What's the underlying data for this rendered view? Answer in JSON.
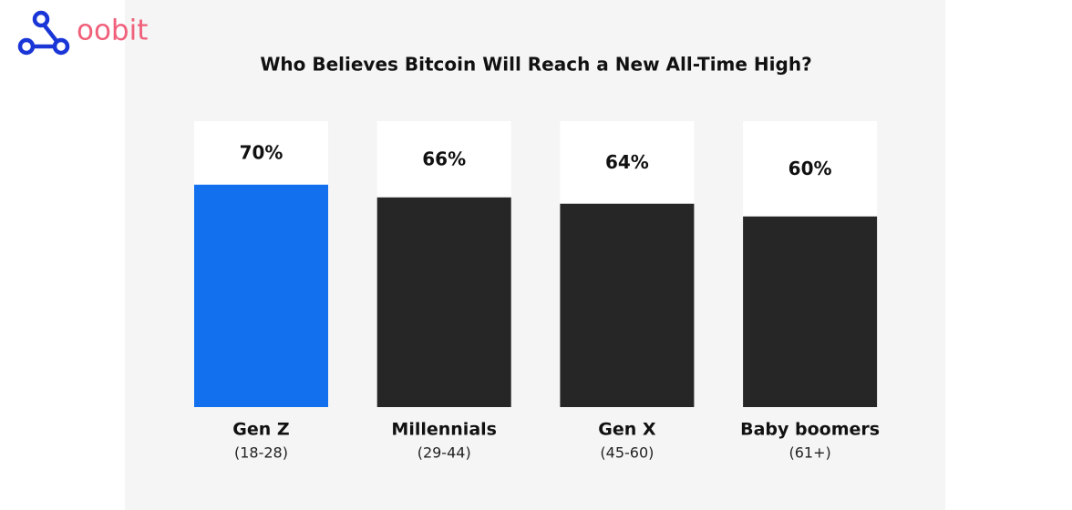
{
  "brand": "oobit",
  "chart_data": {
    "type": "bar",
    "title": "Who Believes Bitcoin Will Reach a New All-Time High?",
    "categories": [
      "Gen Z",
      "Millennials",
      "Gen X",
      "Baby boomers"
    ],
    "category_ranges": [
      "(18-28)",
      "(29-44)",
      "(45-60)",
      "(61+)"
    ],
    "values": [
      70,
      66,
      64,
      60
    ],
    "value_labels": [
      "70%",
      "66%",
      "64%",
      "60%"
    ],
    "colors": [
      "#1270ef",
      "#262626",
      "#262626",
      "#262626"
    ],
    "ylim": [
      0,
      90
    ]
  }
}
